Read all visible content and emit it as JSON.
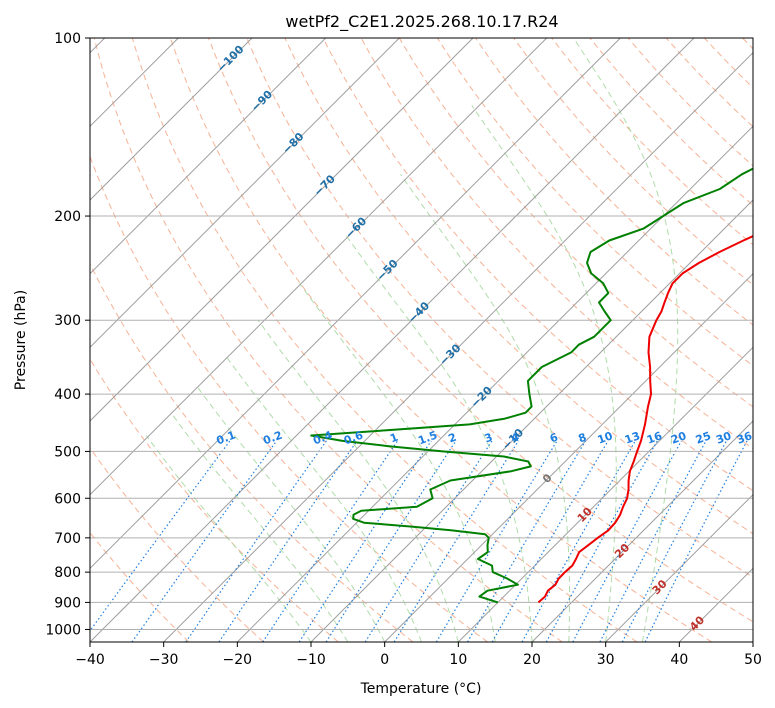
{
  "chart_data": {
    "type": "line",
    "title": "wetPf2_C2E1.2025.268.10.17.R24",
    "xlabel": "Temperature (°C)",
    "ylabel": "Pressure (hPa)",
    "xlim": [
      -40,
      50
    ],
    "ylim_hpa": [
      1050,
      100
    ],
    "y_scale": "log",
    "x_ticks": [
      "−40",
      "−30",
      "−20",
      "−10",
      "0",
      "10",
      "20",
      "30",
      "40",
      "50"
    ],
    "x_tick_values": [
      -40,
      -30,
      -20,
      -10,
      0,
      10,
      20,
      30,
      40,
      50
    ],
    "y_ticks": [
      "100",
      "200",
      "300",
      "400",
      "500",
      "600",
      "700",
      "800",
      "900",
      "1000"
    ],
    "y_tick_values": [
      100,
      200,
      300,
      400,
      500,
      600,
      700,
      800,
      900,
      1000
    ],
    "grid": true,
    "colors": {
      "temperature": "#ee0000",
      "dewpoint": "#008000",
      "isotherm": "#9e9e9e",
      "dry_adiabat": "#f4a582",
      "moist_adiabat": "#a6d8a0",
      "mixing_ratio": "#1f7fe0",
      "grid": "#b0b0b0",
      "isotherm_label": "#1f6fa8",
      "warm_label": "#c0302a",
      "zero_label": "#777777"
    },
    "series": [
      {
        "kind": "temperature",
        "pressure": [
          900,
          880,
          860,
          840,
          820,
          800,
          780,
          760,
          740,
          720,
          700,
          680,
          660,
          640,
          620,
          600,
          580,
          560,
          540,
          520,
          500,
          480,
          450,
          420,
          400,
          380,
          360,
          340,
          320,
          300,
          290,
          280,
          270,
          260,
          250,
          240,
          230,
          220,
          210,
          200,
          190,
          180,
          170,
          160,
          150,
          140,
          135,
          130,
          125,
          120,
          110,
          100
        ],
        "temperature": [
          15.5,
          15.6,
          15.2,
          15.4,
          15.0,
          15.0,
          15.1,
          14.7,
          14.2,
          14.5,
          14.8,
          15.2,
          15.1,
          14.7,
          14.0,
          13.4,
          12.4,
          11.2,
          10.1,
          9.3,
          8.4,
          7.5,
          5.8,
          3.8,
          2.5,
          0.6,
          -1.3,
          -3.5,
          -5.5,
          -6.8,
          -7.3,
          -8.1,
          -8.9,
          -9.6,
          -9.6,
          -8.8,
          -7.5,
          -5.8,
          -3.9,
          -2.3,
          -0.9,
          0.2,
          1.6,
          2.3,
          2.2,
          1.8,
          1.5,
          1.6,
          2.1,
          3.0,
          5.0,
          7.2
        ]
      },
      {
        "kind": "dewpoint",
        "pressure": [
          900,
          880,
          860,
          840,
          820,
          800,
          780,
          760,
          740,
          720,
          700,
          690,
          680,
          670,
          660,
          650,
          640,
          630,
          620,
          600,
          580,
          560,
          540,
          530,
          520,
          510,
          500,
          490,
          480,
          470,
          460,
          450,
          440,
          430,
          420,
          400,
          380,
          360,
          340,
          330,
          320,
          300,
          290,
          280,
          270,
          260,
          250,
          240,
          230,
          220,
          210,
          200,
          190,
          180,
          170,
          160,
          150,
          140,
          130,
          120,
          110,
          100
        ],
        "dewpoint": [
          10.0,
          6.7,
          7.0,
          10.3,
          8.0,
          5.2,
          4.2,
          1.4,
          1.8,
          0.8,
          0.0,
          -1.0,
          -6.0,
          -12.0,
          -19.0,
          -21.0,
          -21.5,
          -21.0,
          -14.0,
          -13.0,
          -14.5,
          -13.0,
          -6.0,
          -4.0,
          -5.0,
          -9.0,
          -18.0,
          -26.0,
          -33.0,
          -38.0,
          -28.0,
          -18.0,
          -14.0,
          -12.0,
          -12.0,
          -14.0,
          -16.0,
          -16.0,
          -14.0,
          -14.0,
          -13.0,
          -13.0,
          -15.0,
          -17.0,
          -17.0,
          -19.0,
          -22.0,
          -24.0,
          -25.0,
          -24.0,
          -21.0,
          -20.0,
          -19.0,
          -16.0,
          -15.0,
          -13.0,
          -11.0,
          -7.0,
          -4.0,
          -1.0,
          2.0,
          6.0
        ]
      }
    ],
    "isotherm_labels": [
      "−100",
      "−90",
      "−80",
      "−70",
      "−60",
      "−50",
      "−40",
      "−30",
      "−20",
      "−10",
      "0",
      "10",
      "20",
      "30",
      "40"
    ],
    "isotherm_label_values": [
      -100,
      -90,
      -80,
      -70,
      -60,
      -50,
      -40,
      -30,
      -20,
      -10,
      0,
      10,
      20,
      30,
      40
    ],
    "mixing_ratio_labels": [
      "0.1",
      "0.2",
      "0.4",
      "0.6",
      "1",
      "1.5",
      "2",
      "3",
      "4",
      "6",
      "8",
      "10",
      "13",
      "16",
      "20",
      "25",
      "30",
      "36"
    ],
    "mixing_ratio_values": [
      0.1,
      0.2,
      0.4,
      0.6,
      1,
      1.5,
      2,
      3,
      4,
      6,
      8,
      10,
      13,
      16,
      20,
      25,
      30,
      36
    ]
  }
}
